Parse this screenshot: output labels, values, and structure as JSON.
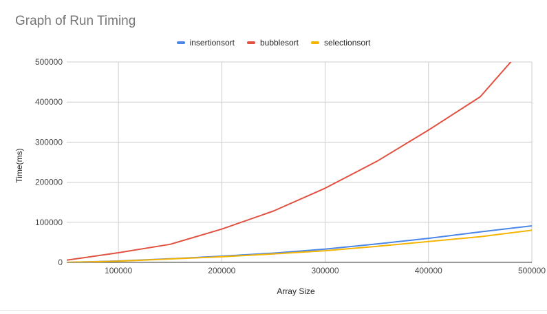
{
  "chart_data": {
    "type": "line",
    "title": "Graph of Run Timing",
    "xlabel": "Array Size",
    "ylabel": "Time(ms)",
    "xlim": [
      50000,
      500000
    ],
    "ylim": [
      0,
      500000
    ],
    "x_ticks": [
      "100000",
      "200000",
      "300000",
      "400000",
      "500000"
    ],
    "y_ticks": [
      "0",
      "100000",
      "200000",
      "300000",
      "400000",
      "500000"
    ],
    "grid": true,
    "legend_position": "top",
    "x": [
      50000,
      100000,
      150000,
      200000,
      250000,
      300000,
      350000,
      400000,
      450000,
      500000
    ],
    "series": [
      {
        "name": "insertionsort",
        "color": "#4a86e8",
        "values": [
          0,
          3500,
          9000,
          15500,
          23000,
          33000,
          46000,
          60000,
          76000,
          91000
        ]
      },
      {
        "name": "bubblesort",
        "color": "#e15140",
        "values": [
          5500,
          24000,
          45000,
          83000,
          128000,
          185000,
          252000,
          330000,
          413000,
          560000
        ]
      },
      {
        "name": "selectionsort",
        "color": "#f4b400",
        "values": [
          0,
          3000,
          8500,
          14000,
          21000,
          29000,
          40000,
          52000,
          64000,
          80000
        ]
      }
    ]
  }
}
